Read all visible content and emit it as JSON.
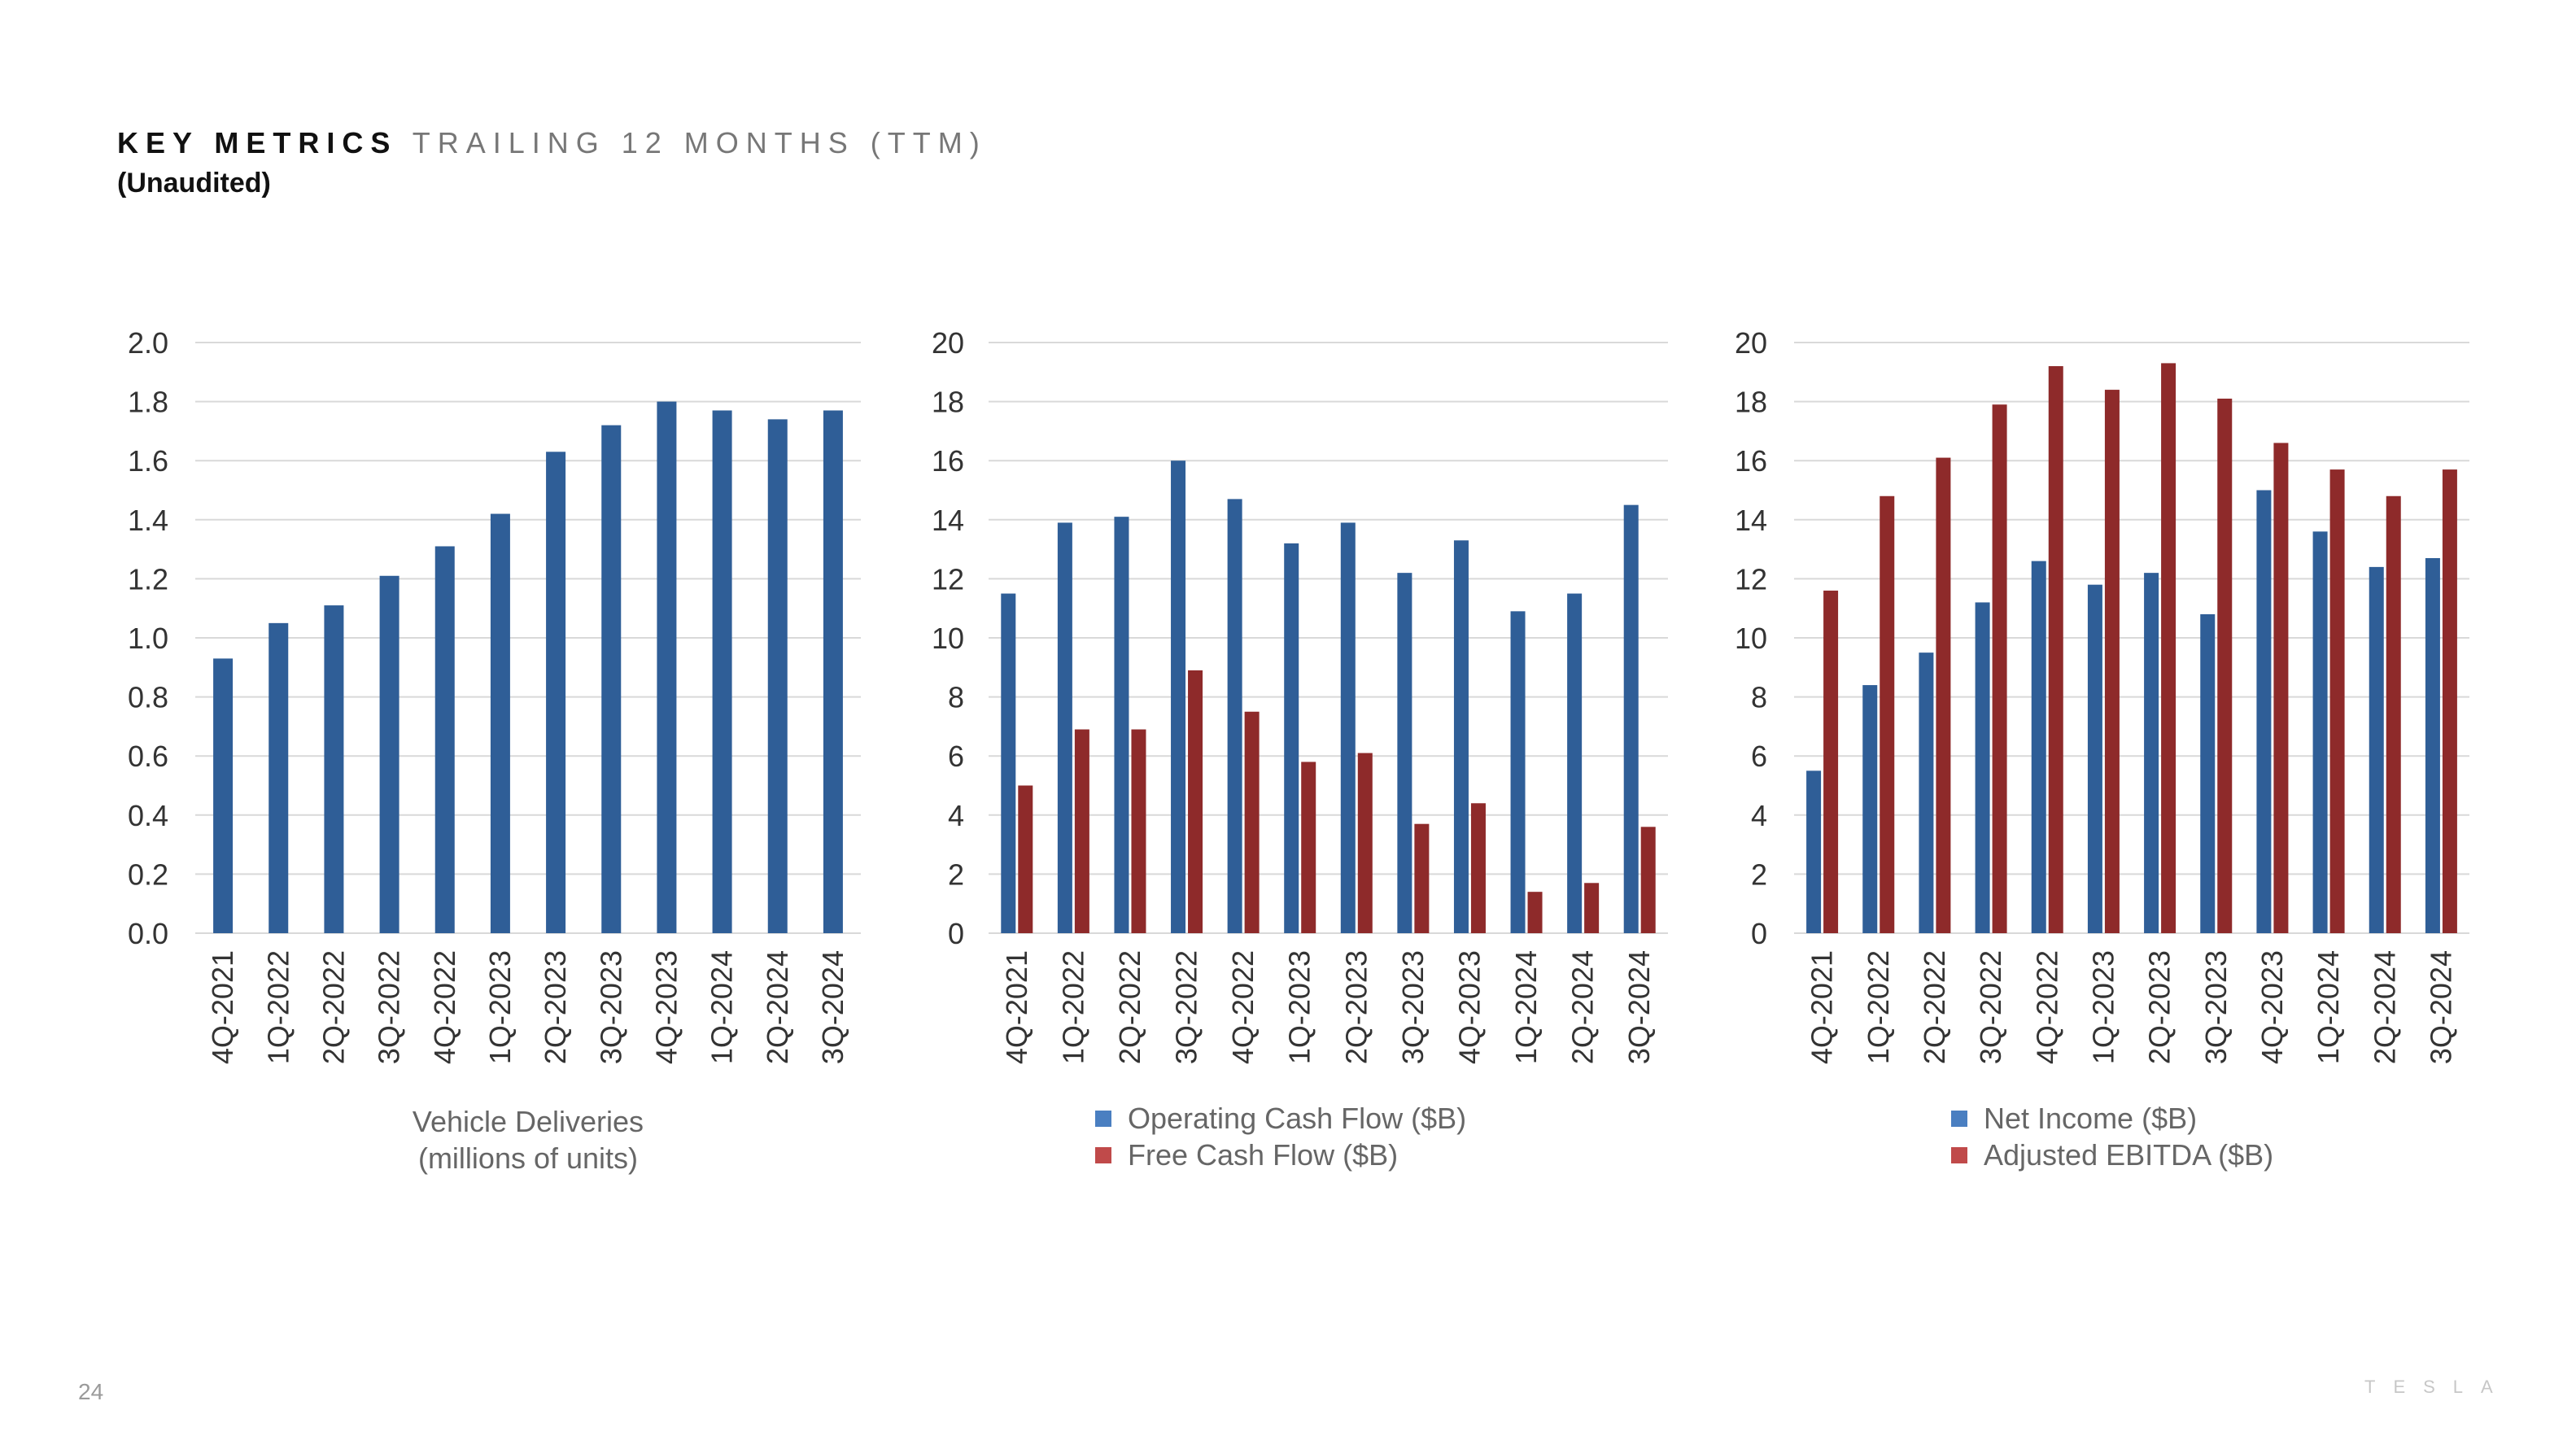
{
  "header": {
    "title_bold": "KEY METRICS",
    "title_light": "TRAILING 12 MONTHS (TTM)",
    "subtitle": "(Unaudited)"
  },
  "footer": {
    "page_number": "24",
    "brand": "TESLA"
  },
  "colors": {
    "blue": "#2f5e97",
    "red": "#8e2a2a",
    "legend_blue": "#4a7fc1",
    "legend_red": "#c04a4a",
    "grid": "#d9d9d9",
    "tick_text": "#333333",
    "label_text": "#666666"
  },
  "chart_data": [
    {
      "type": "bar",
      "categories": [
        "4Q-2021",
        "1Q-2022",
        "2Q-2022",
        "3Q-2022",
        "4Q-2022",
        "1Q-2023",
        "2Q-2023",
        "3Q-2023",
        "4Q-2023",
        "1Q-2024",
        "2Q-2024",
        "3Q-2024"
      ],
      "series": [
        {
          "values": [
            0.93,
            1.05,
            1.11,
            1.21,
            1.31,
            1.42,
            1.63,
            1.72,
            1.8,
            1.77,
            1.74,
            1.77
          ],
          "color": "blue"
        }
      ],
      "ylim": [
        0,
        2.0
      ],
      "yticks": [
        "0.0",
        "0.2",
        "0.4",
        "0.6",
        "0.8",
        "1.0",
        "1.2",
        "1.4",
        "1.6",
        "1.8",
        "2.0"
      ],
      "xlabel_lines": [
        "Vehicle Deliveries",
        "(millions of units)"
      ],
      "grid": true
    },
    {
      "type": "bar",
      "categories": [
        "4Q-2021",
        "1Q-2022",
        "2Q-2022",
        "3Q-2022",
        "4Q-2022",
        "1Q-2023",
        "2Q-2023",
        "3Q-2023",
        "4Q-2023",
        "1Q-2024",
        "2Q-2024",
        "3Q-2024"
      ],
      "series": [
        {
          "name": "Operating Cash Flow ($B)",
          "values": [
            11.5,
            13.9,
            14.1,
            16.0,
            14.7,
            13.2,
            13.9,
            12.2,
            13.3,
            10.9,
            11.5,
            14.5
          ],
          "color": "blue"
        },
        {
          "name": "Free Cash Flow ($B)",
          "values": [
            5.0,
            6.9,
            6.9,
            8.9,
            7.5,
            5.8,
            6.1,
            3.7,
            4.4,
            1.4,
            1.7,
            3.6
          ],
          "color": "red"
        }
      ],
      "ylim": [
        0,
        20
      ],
      "yticks": [
        "0",
        "2",
        "4",
        "6",
        "8",
        "10",
        "12",
        "14",
        "16",
        "18",
        "20"
      ],
      "legend_position": "bottom",
      "grid": true
    },
    {
      "type": "bar",
      "categories": [
        "4Q-2021",
        "1Q-2022",
        "2Q-2022",
        "3Q-2022",
        "4Q-2022",
        "1Q-2023",
        "2Q-2023",
        "3Q-2023",
        "4Q-2023",
        "1Q-2024",
        "2Q-2024",
        "3Q-2024"
      ],
      "series": [
        {
          "name": "Net Income ($B)",
          "values": [
            5.5,
            8.4,
            9.5,
            11.2,
            12.6,
            11.8,
            12.2,
            10.8,
            15.0,
            13.6,
            12.4,
            12.7
          ],
          "color": "blue"
        },
        {
          "name": "Adjusted EBITDA ($B)",
          "values": [
            11.6,
            14.8,
            16.1,
            17.9,
            19.2,
            18.4,
            19.3,
            18.1,
            16.6,
            15.7,
            14.8,
            15.7
          ],
          "color": "red"
        }
      ],
      "ylim": [
        0,
        20
      ],
      "yticks": [
        "0",
        "2",
        "4",
        "6",
        "8",
        "10",
        "12",
        "14",
        "16",
        "18",
        "20"
      ],
      "legend_position": "bottom",
      "grid": true
    }
  ]
}
